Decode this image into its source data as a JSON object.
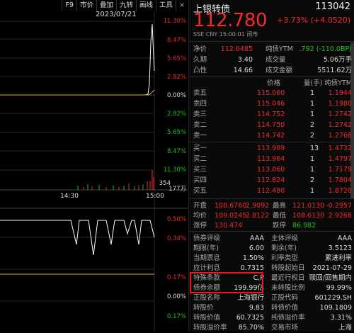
{
  "toolbar": {
    "items": [
      "F9",
      "市价",
      "叠加",
      "九转",
      "画线",
      "工具"
    ],
    "close": "×"
  },
  "chart": {
    "date": "2023/07/21",
    "pct_labels": [
      "11.30%",
      "8.47%",
      "5.65%",
      "2.82%",
      "0.00%",
      "2.82%",
      "5.65%",
      "8.47%",
      "11.30%"
    ],
    "vol_labels": [
      "354",
      "177万"
    ],
    "time_labels": [
      "14:30",
      "15:00"
    ],
    "ind_labels": [
      "0.50%",
      "0.34%",
      "0.17%",
      "0.00%",
      "0.17%"
    ]
  },
  "header": {
    "name": "上银转债",
    "code": "113042",
    "price": "112.780",
    "change": "+3.73% (+4.0520)",
    "sub": "SSE  CNY  15:00:01  闭市"
  },
  "stats": [
    {
      "l1": "净价",
      "v1": "112.0485",
      "l2": "纯债YTM",
      "v2": ".792 (-110.0BP)",
      "c1": "red",
      "c2": "green"
    },
    {
      "l1": "久期",
      "v1": "3.40",
      "l2": "成交量",
      "v2": "5.06万手",
      "c1": "white",
      "c2": "white"
    },
    {
      "l1": "凸性",
      "v1": "14.66",
      "l2": "成交金额",
      "v2": "5511.62万",
      "c1": "white",
      "c2": "white"
    }
  ],
  "book_header": {
    "price": "价格",
    "qty": "量(手)",
    "ytm": "纯债YTM"
  },
  "asks": [
    {
      "label": "卖五",
      "price": "115.060",
      "qty": "1",
      "ytm": "1.1944"
    },
    {
      "label": "卖四",
      "price": "115.046",
      "qty": "1",
      "ytm": "1.1980"
    },
    {
      "label": "卖三",
      "price": "114.752",
      "qty": "1",
      "ytm": "1.2742"
    },
    {
      "label": "卖二",
      "price": "114.750",
      "qty": "2",
      "ytm": "1.2742"
    },
    {
      "label": "卖一",
      "price": "114.742",
      "qty": "2",
      "ytm": "1.2768"
    }
  ],
  "bids": [
    {
      "label": "买一",
      "price": "113.989",
      "qty": "13",
      "ytm": "1.4732"
    },
    {
      "label": "买二",
      "price": "113.964",
      "qty": "1",
      "ytm": "1.4797"
    },
    {
      "label": "买三",
      "price": "113.060",
      "qty": "1",
      "ytm": "1.7179"
    },
    {
      "label": "买四",
      "price": "112.824",
      "qty": "2",
      "ytm": "1.7804"
    },
    {
      "label": "买五",
      "price": "112.480",
      "qty": "1",
      "ytm": "1.8720"
    }
  ],
  "ohlc": [
    {
      "l1": "开盘",
      "v1": "108.6760",
      "y1": "2.9092",
      "l2": "最高",
      "v2": "121.0130",
      "y2": "-0.2957",
      "c1": "red",
      "c2": "red"
    },
    {
      "l1": "均价",
      "v1": "109.0245",
      "y1": "2.8122",
      "l2": "最低",
      "v2": "108.6130",
      "y2": "2.9268",
      "c1": "red",
      "c2": "red"
    },
    {
      "l1": "涨停",
      "v1": "130.474",
      "y1": "",
      "l2": "跌停",
      "v2": "86.982",
      "y2": "",
      "c1": "red",
      "c2": "green"
    }
  ],
  "info": [
    {
      "l1": "债券评级",
      "v1": "AAA",
      "l2": "主体评级",
      "v2": "AAA"
    },
    {
      "l1": "期限(年)",
      "v1": "6.00",
      "l2": "剩余(年)",
      "v2": "3.5123"
    },
    {
      "l1": "当期票息",
      "v1": "1.50%",
      "l2": "利率类型",
      "v2": "累进利率"
    },
    {
      "l1": "应计利息",
      "v1": "0.7315",
      "l2": "转股起始日",
      "v2": "2021-07-29"
    },
    {
      "l1": "特殊条款",
      "v1": "C,P",
      "l2": "最近行权日",
      "v2": "赎回/回售期内"
    },
    {
      "l1": "债券余额",
      "v1": "199.99亿",
      "l2": "未转股比例",
      "v2": "99.99%"
    },
    {
      "l1": "正股名称",
      "v1": "上海银行",
      "l2": "正股代码",
      "v2": "601229.SH"
    },
    {
      "l1": "转股价",
      "v1": "9.83",
      "l2": "转债价值",
      "v2": "109.1809"
    },
    {
      "l1": "转股价值",
      "v1": "60.7325",
      "l2": "纯债溢价率",
      "v2": "3.31%"
    },
    {
      "l1": "转股溢价率",
      "v1": "85.70%",
      "l2": "交易市场",
      "v2": "上海"
    }
  ]
}
